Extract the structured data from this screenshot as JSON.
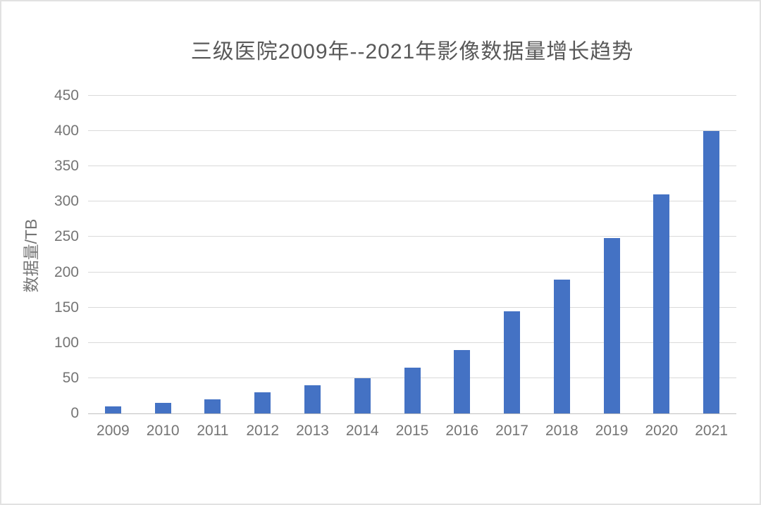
{
  "figure": {
    "background": "#ffffff",
    "border_color": "#e2e2e2"
  },
  "chart_data": {
    "type": "bar",
    "title": "三级医院2009年--2021年影像数据量增长趋势",
    "xlabel": "",
    "ylabel": "数据量/TB",
    "categories": [
      "2009",
      "2010",
      "2011",
      "2012",
      "2013",
      "2014",
      "2015",
      "2016",
      "2017",
      "2018",
      "2019",
      "2020",
      "2021"
    ],
    "values": [
      10,
      15,
      20,
      30,
      40,
      50,
      65,
      90,
      145,
      190,
      248,
      310,
      400
    ],
    "unit": "TB",
    "ylim": [
      0,
      450
    ],
    "ytick_step": 50,
    "yticks": [
      0,
      50,
      100,
      150,
      200,
      250,
      300,
      350,
      400,
      450
    ],
    "grid": true,
    "legend_position": "none",
    "colors": {
      "bar": "#4472C4",
      "gridline": "#d9d9d9",
      "axis_line": "#bfbfbf",
      "title_text": "#595959",
      "tick_text": "#757575"
    }
  }
}
